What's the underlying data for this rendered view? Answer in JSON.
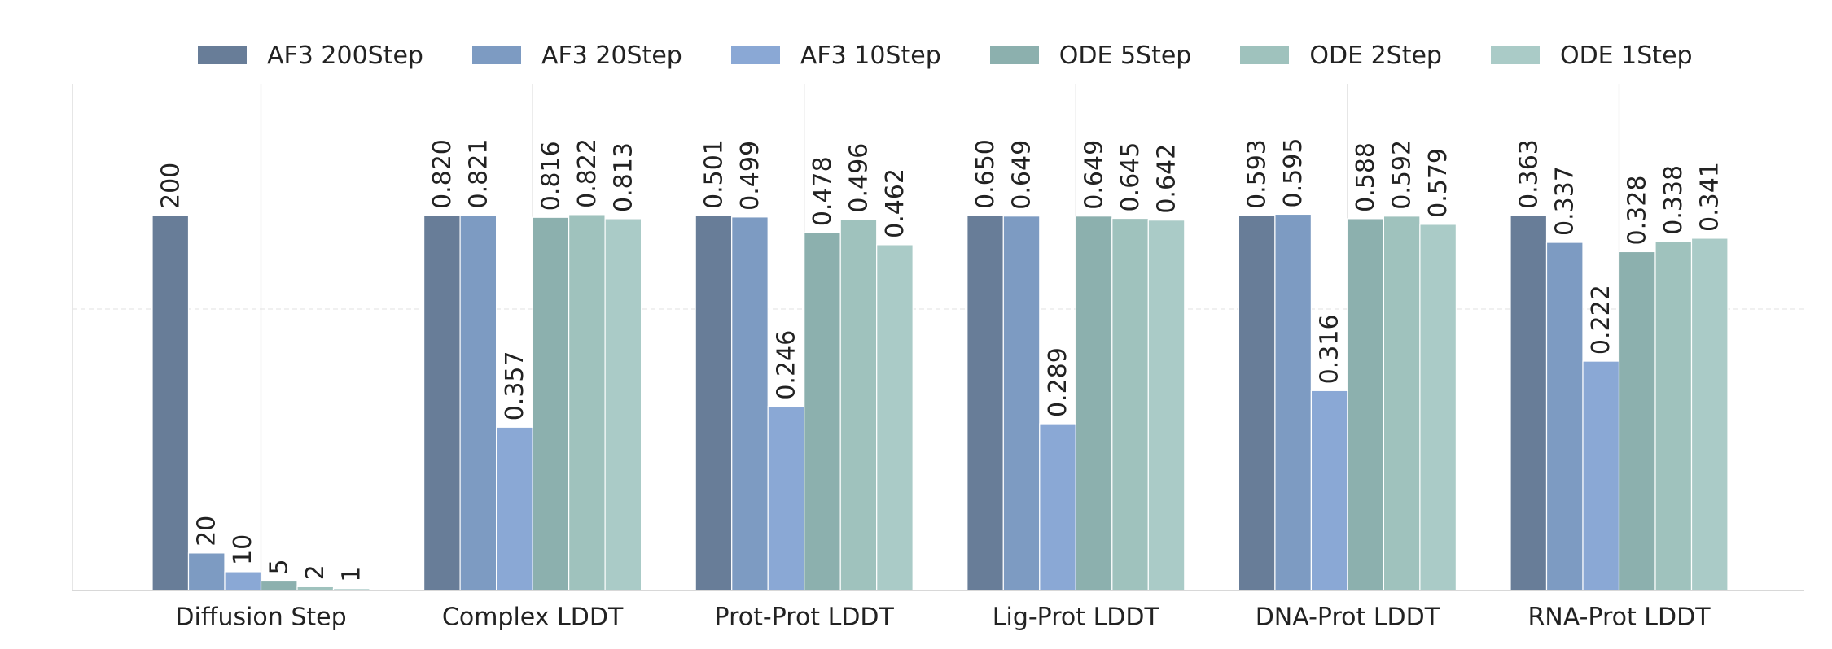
{
  "chart_data": {
    "type": "bar",
    "categories": [
      "Diffusion Step",
      "Complex LDDT",
      "Prot-Prot LDDT",
      "Lig-Prot LDDT",
      "DNA-Prot LDDT",
      "RNA-Prot LDDT"
    ],
    "series": [
      {
        "name": "AF3 200Step",
        "color": "#687d98",
        "values": [
          200,
          0.82,
          0.501,
          0.65,
          0.593,
          0.363
        ],
        "labels": [
          "200",
          "0.820",
          "0.501",
          "0.650",
          "0.593",
          "0.363"
        ]
      },
      {
        "name": "AF3 20Step",
        "color": "#7d9bc2",
        "values": [
          20,
          0.821,
          0.499,
          0.649,
          0.595,
          0.337
        ],
        "labels": [
          "20",
          "0.821",
          "0.499",
          "0.649",
          "0.595",
          "0.337"
        ]
      },
      {
        "name": "AF3 10Step",
        "color": "#8aa8d5",
        "values": [
          10,
          0.357,
          0.246,
          0.289,
          0.316,
          0.222
        ],
        "labels": [
          "10",
          "0.357",
          "0.246",
          "0.289",
          "0.316",
          "0.222"
        ]
      },
      {
        "name": "ODE 5Step",
        "color": "#8cb0ae",
        "values": [
          5,
          0.816,
          0.478,
          0.649,
          0.588,
          0.328
        ],
        "labels": [
          "5",
          "0.816",
          "0.478",
          "0.649",
          "0.588",
          "0.328"
        ]
      },
      {
        "name": "ODE 2Step",
        "color": "#9fc2bd",
        "values": [
          2,
          0.822,
          0.496,
          0.645,
          0.592,
          0.338
        ],
        "labels": [
          "2",
          "0.822",
          "0.496",
          "0.645",
          "0.592",
          "0.338"
        ]
      },
      {
        "name": "ODE 1Step",
        "color": "#aacbc7",
        "values": [
          1,
          0.813,
          0.462,
          0.642,
          0.579,
          0.341
        ],
        "labels": [
          "1",
          "0.813",
          "0.462",
          "0.642",
          "0.579",
          "0.341"
        ]
      }
    ],
    "axis_note": "each category is scaled independently; the first series in each category sets the same reference height",
    "yaxis_tick_labels": "none",
    "grid": "one faint dashed horizontal gridline, vertical separator lines",
    "legend_position": "top-center"
  }
}
